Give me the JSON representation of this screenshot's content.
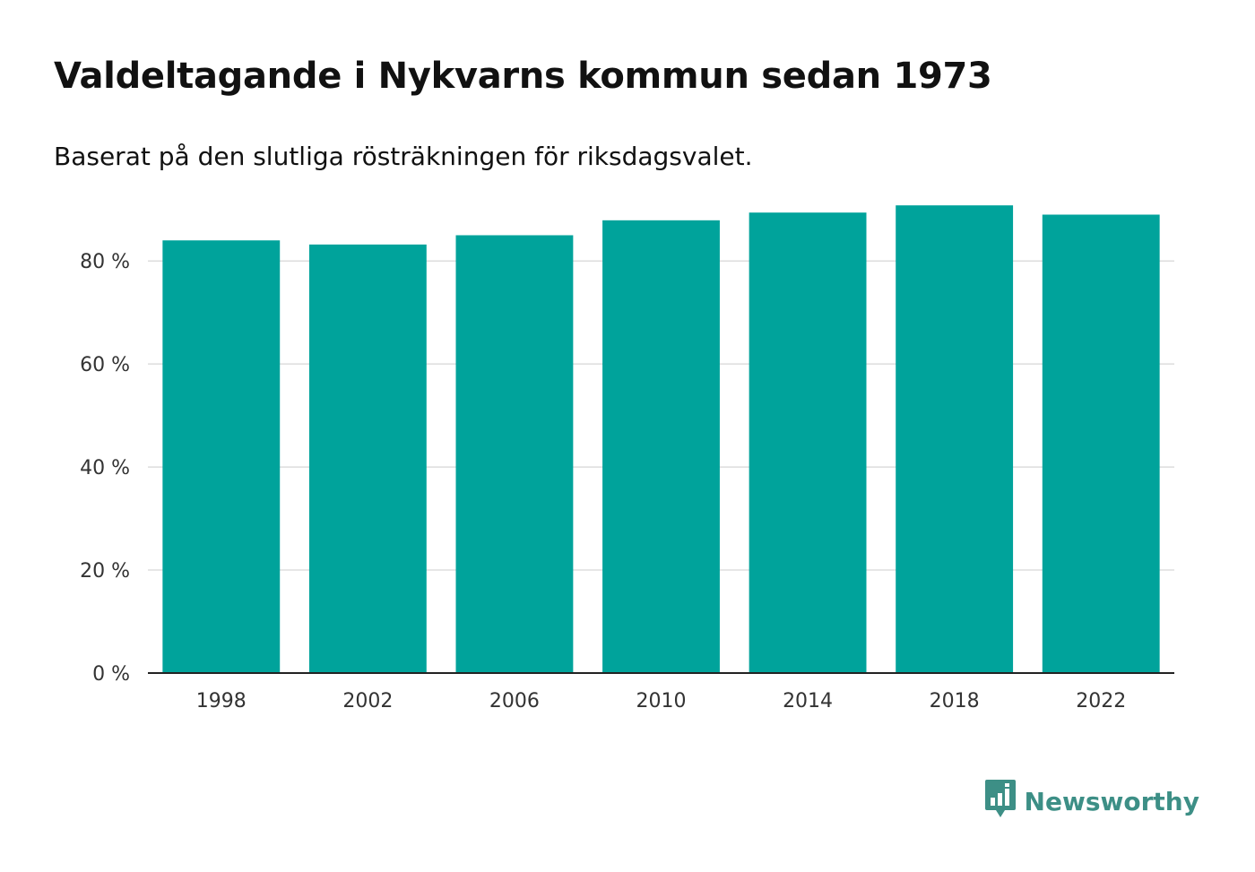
{
  "header": {
    "title": "Valdeltagande i Nykvarns kommun sedan 1973",
    "subtitle": "Baserat på den slutliga rösträkningen för riksdagsvalet."
  },
  "logo": {
    "text": "Newsworthy",
    "icon": "chart-speech-bubble-icon",
    "color": "#3d8f86"
  },
  "colors": {
    "bar": "#00a39b",
    "grid": "#dddddd",
    "axis": "#222222"
  },
  "chart_data": {
    "type": "bar",
    "title": "Valdeltagande i Nykvarns kommun sedan 1973",
    "subtitle": "Baserat på den slutliga rösträkningen för riksdagsvalet.",
    "xlabel": "",
    "ylabel": "",
    "categories": [
      "1998",
      "2002",
      "2006",
      "2010",
      "2014",
      "2018",
      "2022"
    ],
    "values": [
      84.0,
      83.2,
      85.0,
      87.9,
      89.4,
      90.8,
      89.0
    ],
    "ylim": [
      0,
      91
    ],
    "yticks": [
      0,
      20,
      40,
      60,
      80
    ],
    "ytick_labels": [
      "0 %",
      "20 %",
      "40 %",
      "60 %",
      "80 %"
    ],
    "grid": true,
    "legend": "none"
  }
}
